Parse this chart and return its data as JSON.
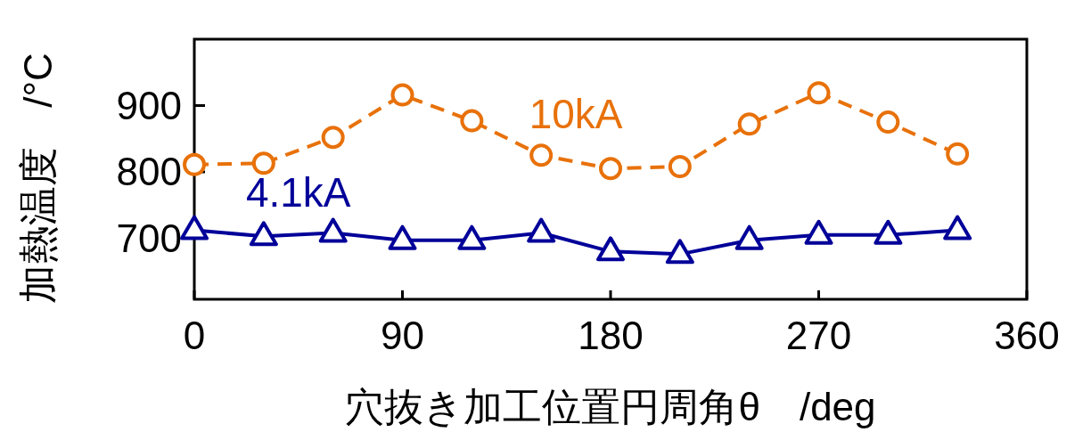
{
  "chart_data": {
    "type": "line",
    "xlabel": "穴抜き加工位置円周角θ　/deg",
    "ylabel": "加熱温度　/°C",
    "x": [
      0,
      30,
      60,
      90,
      120,
      150,
      180,
      210,
      240,
      270,
      300,
      330
    ],
    "series": [
      {
        "name": "10kA",
        "color": "#e8710a",
        "marker": "circle",
        "line_style": "dashed",
        "values": [
          811,
          813,
          852,
          916,
          877,
          825,
          805,
          808,
          872,
          919,
          875,
          827
        ]
      },
      {
        "name": "4.1kA",
        "color": "#000099",
        "marker": "triangle",
        "line_style": "solid",
        "values": [
          712,
          703,
          708,
          697,
          697,
          708,
          680,
          676,
          697,
          705,
          705,
          712
        ]
      }
    ],
    "xlim": [
      0,
      360
    ],
    "xticks": [
      0,
      90,
      180,
      270,
      360
    ],
    "ylim": [
      608,
      1000
    ],
    "yticks": [
      700,
      800,
      900
    ],
    "grid": false
  }
}
